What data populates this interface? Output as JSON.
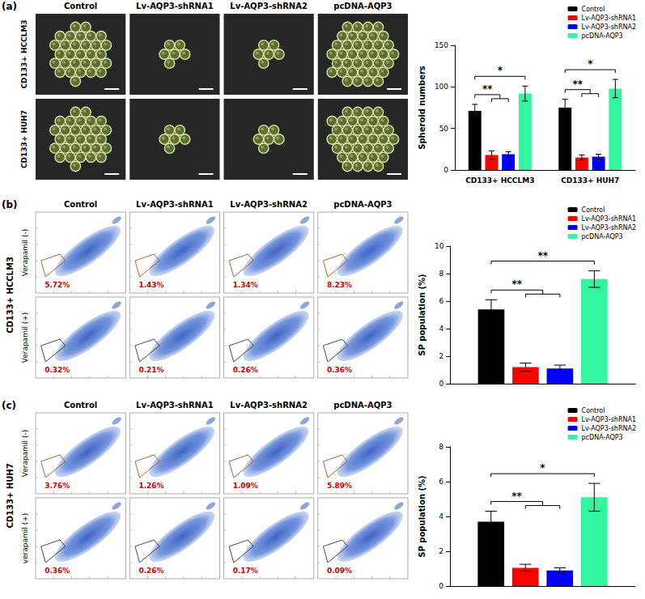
{
  "figure": {
    "panels": [
      {
        "label": "(a)",
        "columns": [
          "Control",
          "Lv-AQP3-shRNA1",
          "Lv-AQP3-shRNA2",
          "pcDNA-AQP3"
        ],
        "rows": [
          "CD133+ HCCLM3",
          "CD133+ HUH7"
        ]
      },
      {
        "label": "(b)",
        "group": "CD133+ HCCLM3",
        "columns": [
          "Control",
          "Lv-AQP3-shRNA1",
          "Lv-AQP3-shRNA2",
          "pcDNA-AQP3"
        ],
        "rows": [
          {
            "name": "Verapamil (-)",
            "gates": [
              {
                "value": 5.72,
                "label": "5.72%"
              },
              {
                "value": 1.43,
                "label": "1.43%"
              },
              {
                "value": 1.34,
                "label": "1.34%"
              },
              {
                "value": 8.23,
                "label": "8.23%"
              }
            ]
          },
          {
            "name": "Verapamil (+)",
            "gates": [
              {
                "value": 0.32,
                "label": "0.32%"
              },
              {
                "value": 0.21,
                "label": "0.21%"
              },
              {
                "value": 0.26,
                "label": "0.26%"
              },
              {
                "value": 0.36,
                "label": "0.36%"
              }
            ]
          }
        ]
      },
      {
        "label": "(c)",
        "group": "CD133+ HUH7",
        "columns": [
          "Control",
          "Lv-AQP3-shRNA1",
          "Lv-AQP3-shRNA2",
          "pcDNA-AQP3"
        ],
        "rows": [
          {
            "name": "Verapamil (-)",
            "gates": [
              {
                "value": 3.76,
                "label": "3.76%"
              },
              {
                "value": 1.26,
                "label": "1.26%"
              },
              {
                "value": 1.09,
                "label": "1.09%"
              },
              {
                "value": 5.89,
                "label": "5.89%"
              }
            ]
          },
          {
            "name": "verapamil (+)",
            "gates": [
              {
                "value": 0.36,
                "label": "0.36%"
              },
              {
                "value": 0.26,
                "label": "0.26%"
              },
              {
                "value": 0.17,
                "label": "0.17%"
              },
              {
                "value": 0.09,
                "label": "0.09%"
              }
            ]
          }
        ]
      }
    ]
  },
  "chart_data": [
    {
      "type": "bar",
      "y_label": "Spheroid numbers",
      "categories": [
        "CD133+ HCCLM3",
        "CD133+ HUH7"
      ],
      "series": [
        {
          "name": "Control",
          "color": "#000000",
          "values": [
            71,
            75
          ],
          "errors": [
            8,
            10
          ]
        },
        {
          "name": "Lv-AQP3-shRNA1",
          "color": "#ff0000",
          "values": [
            18,
            15
          ],
          "errors": [
            5,
            3
          ]
        },
        {
          "name": "Lv-AQP3-shRNA2",
          "color": "#0000ff",
          "values": [
            19,
            16
          ],
          "errors": [
            3,
            3
          ]
        },
        {
          "name": "pcDNA-AQP3",
          "color": "#33f5a0",
          "values": [
            92,
            98
          ],
          "errors": [
            9,
            11
          ]
        }
      ],
      "ylim": [
        0,
        150
      ],
      "yticks": [
        0,
        50,
        100,
        150
      ],
      "grid": false,
      "legend": "top-right",
      "annotations": [
        {
          "text": "**",
          "category": "CD133+ HCCLM3",
          "from": "Control",
          "to": [
            "Lv-AQP3-shRNA1",
            "Lv-AQP3-shRNA2"
          ]
        },
        {
          "text": "*",
          "category": "CD133+ HCCLM3",
          "from": "Control",
          "to": [
            "pcDNA-AQP3"
          ]
        },
        {
          "text": "**",
          "category": "CD133+ HUH7",
          "from": "Control",
          "to": [
            "Lv-AQP3-shRNA1",
            "Lv-AQP3-shRNA2"
          ]
        },
        {
          "text": "*",
          "category": "CD133+ HUH7",
          "from": "Control",
          "to": [
            "pcDNA-AQP3"
          ]
        }
      ]
    },
    {
      "type": "bar",
      "y_label": "SP population (%)",
      "categories": [
        null
      ],
      "series": [
        {
          "name": "Control",
          "color": "#000000",
          "values": [
            5.4
          ],
          "errors": [
            0.7
          ]
        },
        {
          "name": "Lv-AQP3-shRNA1",
          "color": "#ff0000",
          "values": [
            1.2
          ],
          "errors": [
            0.3
          ]
        },
        {
          "name": "Lv-AQP3-shRNA2",
          "color": "#0000ff",
          "values": [
            1.1
          ],
          "errors": [
            0.25
          ]
        },
        {
          "name": "pcDNA-AQP3",
          "color": "#33f5a0",
          "values": [
            7.6
          ],
          "errors": [
            0.6
          ]
        }
      ],
      "ylim": [
        0,
        10
      ],
      "yticks": [
        0,
        2,
        4,
        6,
        8,
        10
      ],
      "grid": false,
      "legend": "top-right",
      "annotations": [
        {
          "text": "**",
          "category": null,
          "from": "Control",
          "to": [
            "Lv-AQP3-shRNA1",
            "Lv-AQP3-shRNA2"
          ]
        },
        {
          "text": "**",
          "category": null,
          "from": "Control",
          "to": [
            "pcDNA-AQP3"
          ]
        }
      ]
    },
    {
      "type": "bar",
      "y_label": "SP population (%)",
      "categories": [
        null
      ],
      "series": [
        {
          "name": "Control",
          "color": "#000000",
          "values": [
            3.7
          ],
          "errors": [
            0.6
          ]
        },
        {
          "name": "Lv-AQP3-shRNA1",
          "color": "#ff0000",
          "values": [
            1.05
          ],
          "errors": [
            0.2
          ]
        },
        {
          "name": "Lv-AQP3-shRNA2",
          "color": "#0000ff",
          "values": [
            0.9
          ],
          "errors": [
            0.15
          ]
        },
        {
          "name": "pcDNA-AQP3",
          "color": "#33f5a0",
          "values": [
            5.1
          ],
          "errors": [
            0.8
          ]
        }
      ],
      "ylim": [
        0,
        8
      ],
      "yticks": [
        0,
        2,
        4,
        6,
        8
      ],
      "grid": false,
      "legend": "top-right",
      "annotations": [
        {
          "text": "**",
          "category": null,
          "from": "Control",
          "to": [
            "Lv-AQP3-shRNA1",
            "Lv-AQP3-shRNA2"
          ]
        },
        {
          "text": "*",
          "category": null,
          "from": "Control",
          "to": [
            "pcDNA-AQP3"
          ]
        }
      ]
    }
  ]
}
